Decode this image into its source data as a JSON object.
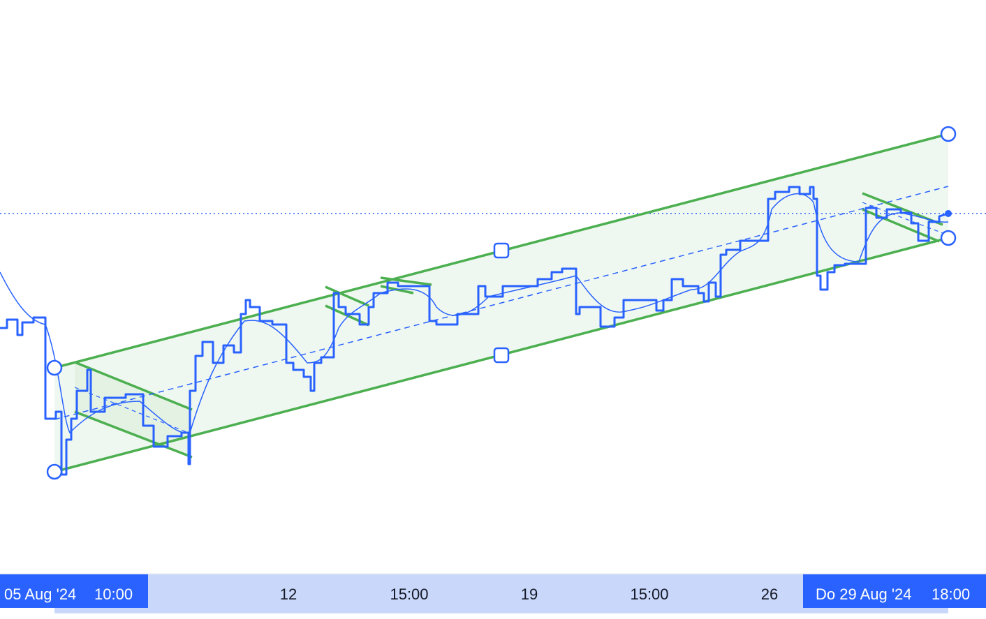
{
  "time_axis": {
    "start_label": {
      "date": "05 Aug '24",
      "time": "10:00"
    },
    "ticks": [
      "12",
      "15:00",
      "19",
      "15:00",
      "26"
    ],
    "end_label": {
      "date": "Do 29 Aug '24",
      "time": "18:00"
    }
  }
}
